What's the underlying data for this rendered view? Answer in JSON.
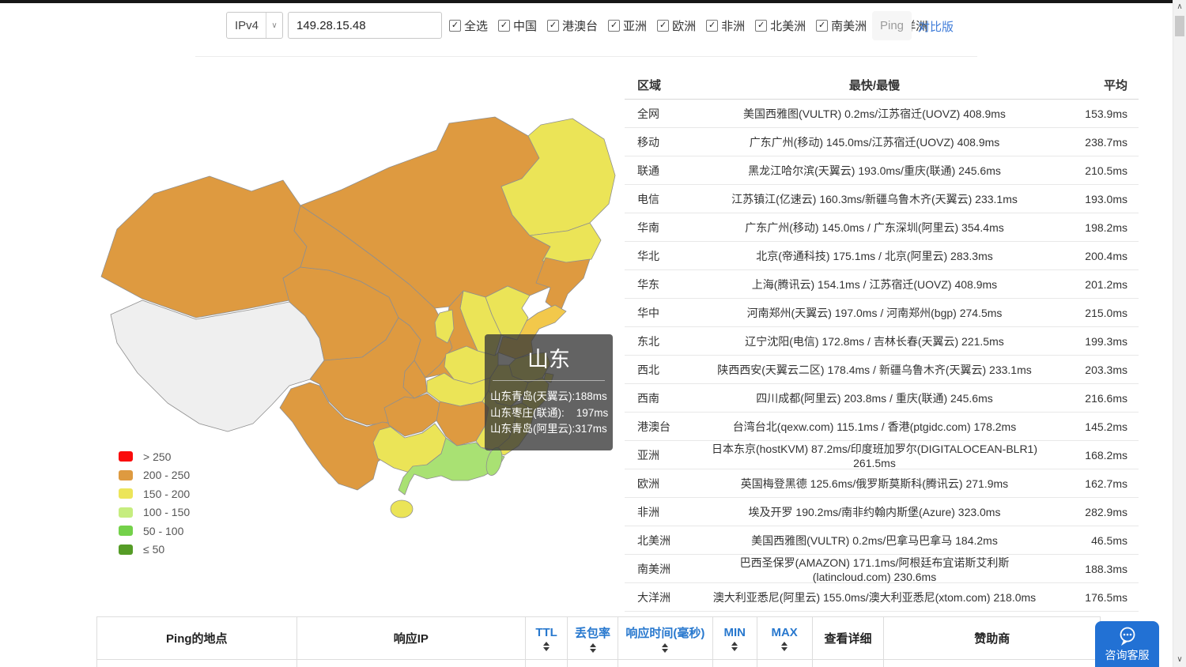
{
  "toolbar": {
    "ip_version": "IPv4",
    "ip_input": "149.28.15.48",
    "checkboxes": [
      "全选",
      "中国",
      "港澳台",
      "亚洲",
      "欧洲",
      "非洲",
      "北美洲",
      "南美洲",
      "大洋洲"
    ],
    "ping_label": "Ping",
    "compare_link": "对比版"
  },
  "icons": {
    "checkbox_check": "✓",
    "select_chevron": "∨",
    "scroll_up": "∧",
    "scroll_down": "∨"
  },
  "map": {
    "legend": [
      {
        "label": "> 250",
        "color": "#fa0b0b"
      },
      {
        "label": "200 - 250",
        "color": "#de9a40"
      },
      {
        "label": "150 - 200",
        "color": "#ece55a"
      },
      {
        "label": "100 - 150",
        "color": "#c6ed7f"
      },
      {
        "label": "50 - 100",
        "color": "#74d14a"
      },
      {
        "label": "≤ 50",
        "color": "#559c26"
      }
    ],
    "colors": {
      "orange": "#de9a40",
      "yellow": "#ebe457",
      "gold": "#f2c84b",
      "light_green": "#a9e173",
      "nodata": "#efefef"
    },
    "provinces": {
      "xinjiang": "orange",
      "xizang": "nodata",
      "qinghai": "orange",
      "gansu": "orange",
      "neimenggu": "orange",
      "heilongjiang": "yellow",
      "jilin": "yellow",
      "liaoning": "orange",
      "hebei": "yellow",
      "shanxi": "yellow",
      "shaanxi": "orange",
      "ningxia": "yellow",
      "shandong": "gold",
      "henan": "yellow",
      "jiangsu": "yellow",
      "anhui": "yellow",
      "shanghai": "yellow",
      "zhejiang": "yellow",
      "hubei": "yellow",
      "chongqing": "orange",
      "sichuan": "orange",
      "yunnan": "orange",
      "guizhou": "orange",
      "hunan": "orange",
      "jiangxi": "yellow",
      "fujian": "yellow",
      "guangxi": "yellow",
      "guangdong": "light_green",
      "hainan": "yellow",
      "taiwan": "light_green"
    },
    "tooltip": {
      "title": "山东",
      "lines": [
        "山东青岛(天翼云):188ms",
        "山东枣庄(联通):    197ms",
        "山东青岛(阿里云):317ms"
      ]
    }
  },
  "region_table": {
    "headers": {
      "region": "区域",
      "detail": "最快/最慢",
      "avg": "平均"
    },
    "rows": [
      {
        "region": "全网",
        "detail": "美国西雅图(VULTR) 0.2ms/江苏宿迁(UOVZ) 408.9ms",
        "avg": "153.9ms"
      },
      {
        "region": "移动",
        "detail": "广东广州(移动) 145.0ms/江苏宿迁(UOVZ) 408.9ms",
        "avg": "238.7ms"
      },
      {
        "region": "联通",
        "detail": "黑龙江哈尔滨(天翼云) 193.0ms/重庆(联通) 245.6ms",
        "avg": "210.5ms"
      },
      {
        "region": "电信",
        "detail": "江苏镇江(亿速云) 160.3ms/新疆乌鲁木齐(天翼云) 233.1ms",
        "avg": "193.0ms"
      },
      {
        "region": "华南",
        "detail": "广东广州(移动) 145.0ms / 广东深圳(阿里云) 354.4ms",
        "avg": "198.2ms"
      },
      {
        "region": "华北",
        "detail": "北京(帝通科技) 175.1ms / 北京(阿里云) 283.3ms",
        "avg": "200.4ms"
      },
      {
        "region": "华东",
        "detail": "上海(腾讯云) 154.1ms / 江苏宿迁(UOVZ) 408.9ms",
        "avg": "201.2ms"
      },
      {
        "region": "华中",
        "detail": "河南郑州(天翼云) 197.0ms / 河南郑州(bgp) 274.5ms",
        "avg": "215.0ms"
      },
      {
        "region": "东北",
        "detail": "辽宁沈阳(电信) 172.8ms / 吉林长春(天翼云) 221.5ms",
        "avg": "199.3ms"
      },
      {
        "region": "西北",
        "detail": "陕西西安(天翼云二区) 178.4ms / 新疆乌鲁木齐(天翼云) 233.1ms",
        "avg": "203.3ms"
      },
      {
        "region": "西南",
        "detail": "四川成都(阿里云) 203.8ms / 重庆(联通) 245.6ms",
        "avg": "216.6ms"
      },
      {
        "region": "港澳台",
        "detail": "台湾台北(qexw.com) 115.1ms / 香港(ptgidc.com) 178.2ms",
        "avg": "145.2ms"
      },
      {
        "region": "亚洲",
        "detail": "日本东京(hostKVM) 87.2ms/印度班加罗尔(DIGITALOCEAN-BLR1) 261.5ms",
        "avg": "168.2ms"
      },
      {
        "region": "欧洲",
        "detail": "英国梅登黑德 125.6ms/俄罗斯莫斯科(腾讯云) 271.9ms",
        "avg": "162.7ms"
      },
      {
        "region": "非洲",
        "detail": "埃及开罗 190.2ms/南非约翰内斯堡(Azure) 323.0ms",
        "avg": "282.9ms"
      },
      {
        "region": "北美洲",
        "detail": "美国西雅图(VULTR) 0.2ms/巴拿马巴拿马 184.2ms",
        "avg": "46.5ms"
      },
      {
        "region": "南美洲",
        "detail": "巴西圣保罗(AMAZON) 171.1ms/阿根廷布宜诺斯艾利斯(latincloud.com) 230.6ms",
        "avg": "188.3ms"
      },
      {
        "region": "大洋洲",
        "detail": "澳大利亚悉尼(阿里云) 155.0ms/澳大利亚悉尼(xtom.com) 218.0ms",
        "avg": "176.5ms"
      }
    ]
  },
  "ping_table": {
    "headers": [
      {
        "label": "Ping的地点",
        "sortable": false
      },
      {
        "label": "响应IP",
        "sortable": false
      },
      {
        "label": "TTL",
        "sortable": true
      },
      {
        "label": "丢包率",
        "sortable": true
      },
      {
        "label": "响应时间(毫秒)",
        "sortable": true
      },
      {
        "label": "MIN",
        "sortable": true
      },
      {
        "label": "MAX",
        "sortable": true
      },
      {
        "label": "查看详细",
        "sortable": false
      },
      {
        "label": "赞助商",
        "sortable": false
      }
    ]
  },
  "floating": {
    "support_label": "咨询客服"
  }
}
